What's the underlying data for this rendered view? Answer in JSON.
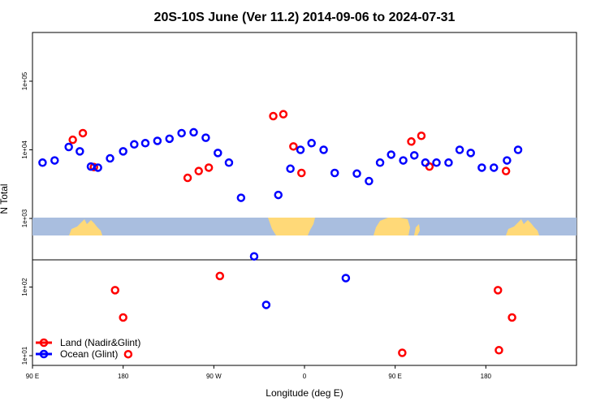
{
  "chart_data": {
    "type": "scatter",
    "title": "20S-10S June (Ver 11.2)   2014-09-06 to 2024-07-31",
    "xlabel": "Longitude (deg E)",
    "ylabel": "N Total",
    "y_scale": "log",
    "x_tick_labels": [
      "90 E",
      "180",
      "90 W",
      "0",
      "90 E",
      "180"
    ],
    "y_tick_labels": [
      "1e+01",
      "1e+02",
      "1e+03",
      "1e+04",
      "1e+05"
    ],
    "colors": {
      "land": "#ff0000",
      "ocean": "#0000ff",
      "land_mask": "#ffd978",
      "ocean_mask": "#a9bedf"
    },
    "legend_position": "bottom-left",
    "series": [
      {
        "name": "Land (Nadir&Glint)",
        "color": "#ff0000",
        "x": [
          130,
          140,
          151,
          172,
          180,
          185,
          244,
          255,
          265,
          276,
          329,
          339,
          349,
          357,
          457,
          466,
          476,
          484,
          552,
          553,
          560,
          566
        ],
        "y": [
          14000,
          17500,
          5600,
          90,
          36,
          10.5,
          3900,
          4900,
          5500,
          145,
          31000,
          33000,
          11200,
          4600,
          11,
          13200,
          16000,
          5700,
          90,
          12,
          4900,
          36
        ]
      },
      {
        "name": "Ocean (Glint)",
        "color": "#0000ff",
        "x": [
          100,
          112,
          126,
          137,
          148,
          155,
          167,
          180,
          191,
          202,
          214,
          226,
          238,
          250,
          262,
          274,
          285,
          297,
          310,
          322,
          334,
          346,
          356,
          367,
          379,
          390,
          401,
          412,
          424,
          435,
          446,
          458,
          469,
          480,
          491,
          503,
          514,
          525,
          536,
          548,
          561,
          572
        ],
        "y": [
          6500,
          7000,
          11000,
          9500,
          5700,
          5500,
          7500,
          9500,
          12000,
          12500,
          13500,
          14500,
          17500,
          18000,
          15000,
          9000,
          6500,
          2000,
          280,
          55,
          2200,
          5300,
          10000,
          12500,
          10000,
          4600,
          135,
          4500,
          3500,
          6500,
          8500,
          7000,
          8300,
          6500,
          6500,
          6500,
          10000,
          9000,
          5500,
          5500,
          7000,
          10000
        ]
      }
    ]
  }
}
